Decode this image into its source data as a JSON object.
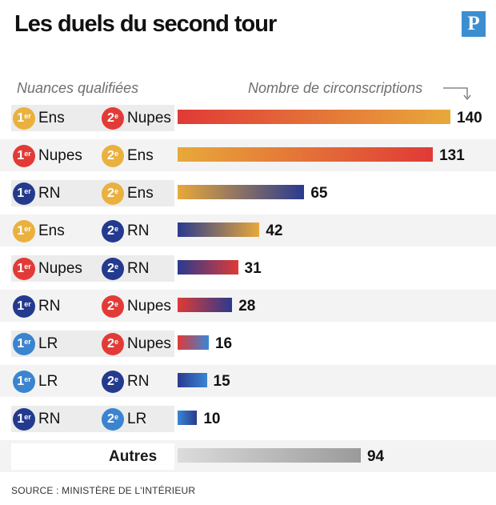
{
  "title": "Les duels du second tour",
  "logo": "P",
  "header_left": "Nuances qualifiées",
  "header_right": "Nombre de circonscriptions",
  "source": "SOURCE : MINISTÈRE DE L'INTÉRIEUR",
  "ordinals": {
    "first_num": "1",
    "first_sup": "er",
    "second_num": "2",
    "second_sup": "e"
  },
  "colors": {
    "Ens": "#e8a93a",
    "Nupes": "#e03a36",
    "RN": "#2a3a8f",
    "LR": "#3a86d4",
    "Autres": "#9a9a9a",
    "badge_Ens": "#eab13f",
    "badge_Nupes": "#e23b37",
    "badge_RN": "#233a8e",
    "badge_LR": "#3b84cf"
  },
  "chart_data": {
    "type": "bar",
    "orientation": "horizontal",
    "categories": [
      "1er Ens – 2e Nupes",
      "1er Nupes – 2e Ens",
      "1er RN – 2e Ens",
      "1er Ens – 2e RN",
      "1er Nupes – 2e RN",
      "1er RN – 2e Nupes",
      "1er LR – 2e Nupes",
      "1er LR – 2e RN",
      "1er RN – 2e LR",
      "Autres"
    ],
    "rows": [
      {
        "first": "Ens",
        "second": "Nupes",
        "value": 140
      },
      {
        "first": "Nupes",
        "second": "Ens",
        "value": 131
      },
      {
        "first": "RN",
        "second": "Ens",
        "value": 65
      },
      {
        "first": "Ens",
        "second": "RN",
        "value": 42
      },
      {
        "first": "Nupes",
        "second": "RN",
        "value": 31
      },
      {
        "first": "RN",
        "second": "Nupes",
        "value": 28
      },
      {
        "first": "LR",
        "second": "Nupes",
        "value": 16
      },
      {
        "first": "LR",
        "second": "RN",
        "value": 15
      },
      {
        "first": "RN",
        "second": "LR",
        "value": 10
      },
      {
        "label": "Autres",
        "value": 94
      }
    ],
    "values": [
      140,
      131,
      65,
      42,
      31,
      28,
      16,
      15,
      10,
      94
    ],
    "xlim": [
      0,
      140
    ],
    "grid": false,
    "legend": "none"
  }
}
